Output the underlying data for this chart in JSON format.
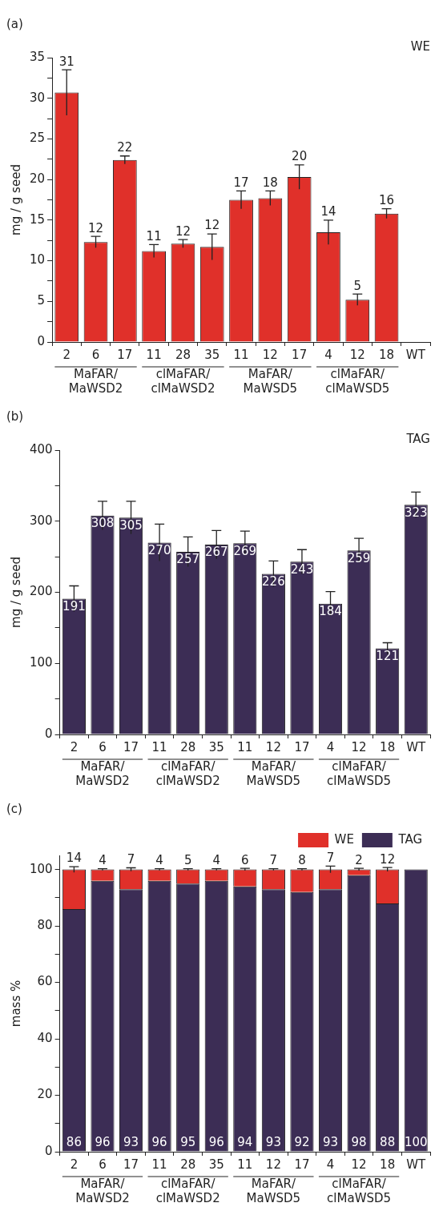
{
  "chart_data": [
    {
      "type": "bar",
      "title": "(a)",
      "subtitle": "WE",
      "ylabel": "mg / g seed",
      "categories": [
        "2",
        "6",
        "17",
        "11",
        "28",
        "35",
        "11",
        "12",
        "17",
        "4",
        "12",
        "18",
        "WT"
      ],
      "series": [
        {
          "color": "#e0302a",
          "values": [
            30.7,
            12.3,
            22.4,
            11.2,
            12.1,
            11.7,
            17.5,
            17.7,
            20.3,
            13.5,
            5.2,
            15.8,
            0
          ],
          "errors": [
            2.8,
            0.7,
            0.5,
            0.8,
            0.5,
            1.6,
            1.1,
            0.9,
            1.5,
            1.5,
            0.7,
            0.6,
            null
          ],
          "value_labels": [
            "31",
            "12",
            "22",
            "11",
            "12",
            "12",
            "17",
            "18",
            "20",
            "14",
            "5",
            "16",
            null
          ]
        }
      ],
      "ylim": [
        0,
        35
      ],
      "yticks": [
        0,
        {
          "value": 2.5,
          "label": null
        },
        5,
        {
          "value": 7.5,
          "label": null
        },
        10,
        {
          "value": 12.5,
          "label": null
        },
        15,
        {
          "value": 17.5,
          "label": null
        },
        20,
        {
          "value": 22.5,
          "label": null
        },
        25,
        {
          "value": 27.5,
          "label": null
        },
        30,
        {
          "value": 32.5,
          "label": null
        },
        35
      ],
      "annotations": [
        "MaFAR/\nMaWSD2",
        "clMaFAR/\nclMaWSD2",
        "MaFAR/\nMaWSD5",
        "clMaFAR/\nclMaWSD5"
      ]
    },
    {
      "type": "bar",
      "title": "(b)",
      "subtitle": "TAG",
      "ylabel": "mg / g seed",
      "categories": [
        "2",
        "6",
        "17",
        "11",
        "28",
        "35",
        "11",
        "12",
        "17",
        "4",
        "12",
        "18",
        "WT"
      ],
      "series": [
        {
          "color": "#3c2d55",
          "values": [
            191,
            308,
            305,
            270,
            257,
            267,
            269,
            226,
            243,
            184,
            259,
            121,
            323
          ],
          "errors": [
            18,
            20,
            23,
            26,
            21,
            20,
            17,
            18,
            17,
            17,
            17,
            8,
            18
          ]
        }
      ],
      "data_labels": true,
      "ylim": [
        0,
        400
      ],
      "yticks": [
        0,
        {
          "value": 50,
          "label": null
        },
        100,
        {
          "value": 150,
          "label": null
        },
        200,
        {
          "value": 250,
          "label": null
        },
        300,
        {
          "value": 350,
          "label": null
        },
        400
      ],
      "annotations": [
        "MaFAR/\nMaWSD2",
        "clMaFAR/\nclMaWSD2",
        "MaFAR/\nMaWSD5",
        "clMaFAR/\nclMaWSD5"
      ]
    },
    {
      "type": "bar",
      "title": "(c)",
      "ylabel": "mass %",
      "categories": [
        "2",
        "6",
        "17",
        "11",
        "28",
        "35",
        "11",
        "12",
        "17",
        "4",
        "12",
        "18",
        "WT"
      ],
      "stacked": true,
      "legend": "top right",
      "series": [
        {
          "name": "TAG",
          "color": "#3c2d55",
          "values": [
            86,
            96,
            93,
            96,
            95,
            96,
            94,
            93,
            92,
            93,
            98,
            88,
            100
          ],
          "value_labels": [
            "86",
            "96",
            "93",
            "96",
            "95",
            "96",
            "94",
            "93",
            "92",
            "93",
            "98",
            "88",
            "100"
          ]
        },
        {
          "name": "WE",
          "color": "#e0302a",
          "values": [
            14,
            4,
            7,
            4,
            5,
            4,
            6,
            7,
            8,
            7,
            2,
            12,
            0
          ],
          "errors": [
            1,
            0.3,
            0.6,
            0.3,
            0.3,
            0.3,
            0.4,
            0.3,
            0.3,
            1.2,
            0.4,
            0.7,
            null
          ],
          "value_labels": [
            "14",
            "4",
            "7",
            "4",
            "5",
            "4",
            "6",
            "7",
            "8",
            "7",
            "2",
            "12",
            null
          ]
        }
      ],
      "ylim": [
        0,
        105
      ],
      "yticks": [
        0,
        {
          "value": 10,
          "label": null
        },
        20,
        {
          "value": 30,
          "label": null
        },
        40,
        {
          "value": 50,
          "label": null
        },
        60,
        {
          "value": 70,
          "label": null
        },
        80,
        {
          "value": 90,
          "label": null
        },
        100
      ],
      "annotations": [
        "MaFAR/\nMaWSD2",
        "clMaFAR/\nclMaWSD2",
        "MaFAR/\nMaWSD5",
        "clMaFAR/\nclMaWSD5"
      ]
    }
  ]
}
